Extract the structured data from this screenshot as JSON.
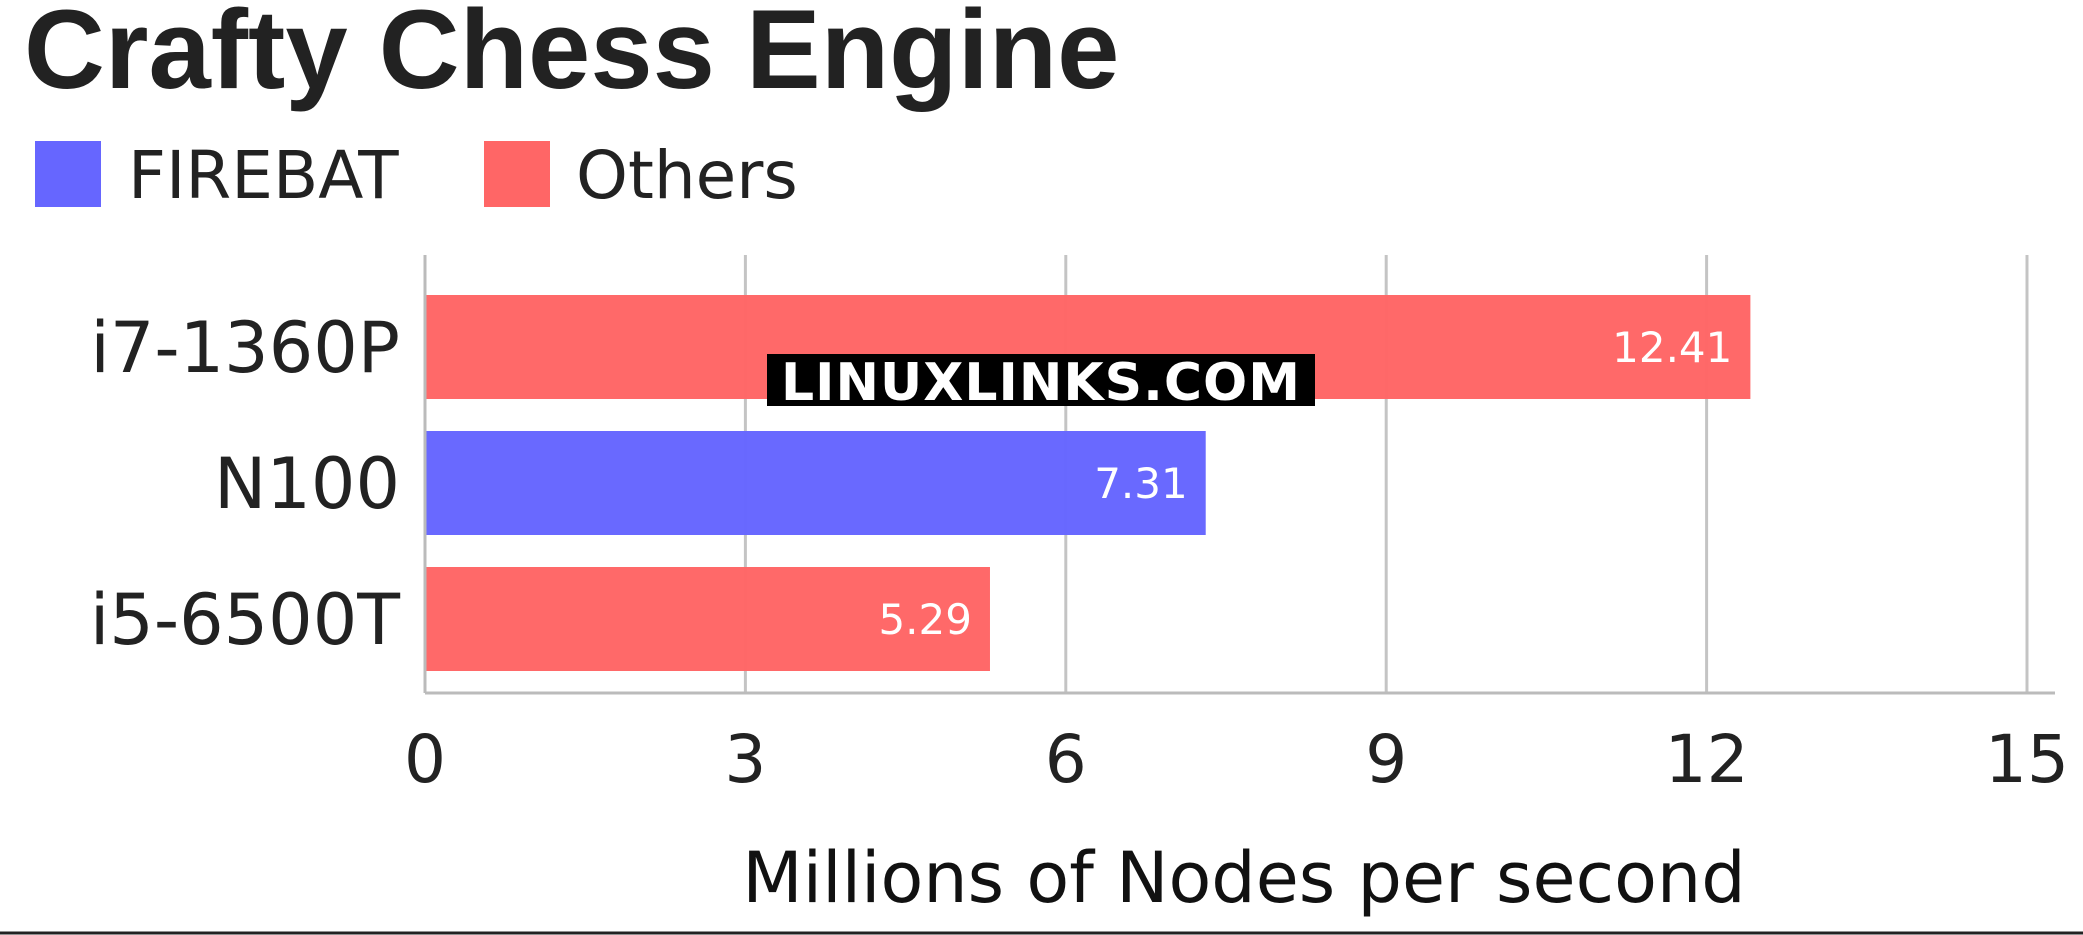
{
  "chart_data": {
    "type": "bar",
    "orientation": "horizontal",
    "title": "Crafty Chess Engine",
    "xlabel": "Millions of Nodes per second",
    "ylabel": "",
    "xlim": [
      0,
      15
    ],
    "xticks": [
      "0",
      "3",
      "6",
      "9",
      "12",
      "15"
    ],
    "grid": true,
    "legend_position": "top-left",
    "legend": [
      {
        "name": "FIREBAT",
        "color": "#6666ff"
      },
      {
        "name": "Others",
        "color": "#ff6666"
      }
    ],
    "categories": [
      "i7-1360P",
      "N100",
      "i5-6500T"
    ],
    "values": [
      12.41,
      7.31,
      5.29
    ],
    "value_labels": [
      "12.41",
      "7.31",
      "5.29"
    ],
    "bar_groups": [
      "Others",
      "FIREBAT",
      "Others"
    ]
  },
  "watermark": "LINUXLINKS.COM"
}
